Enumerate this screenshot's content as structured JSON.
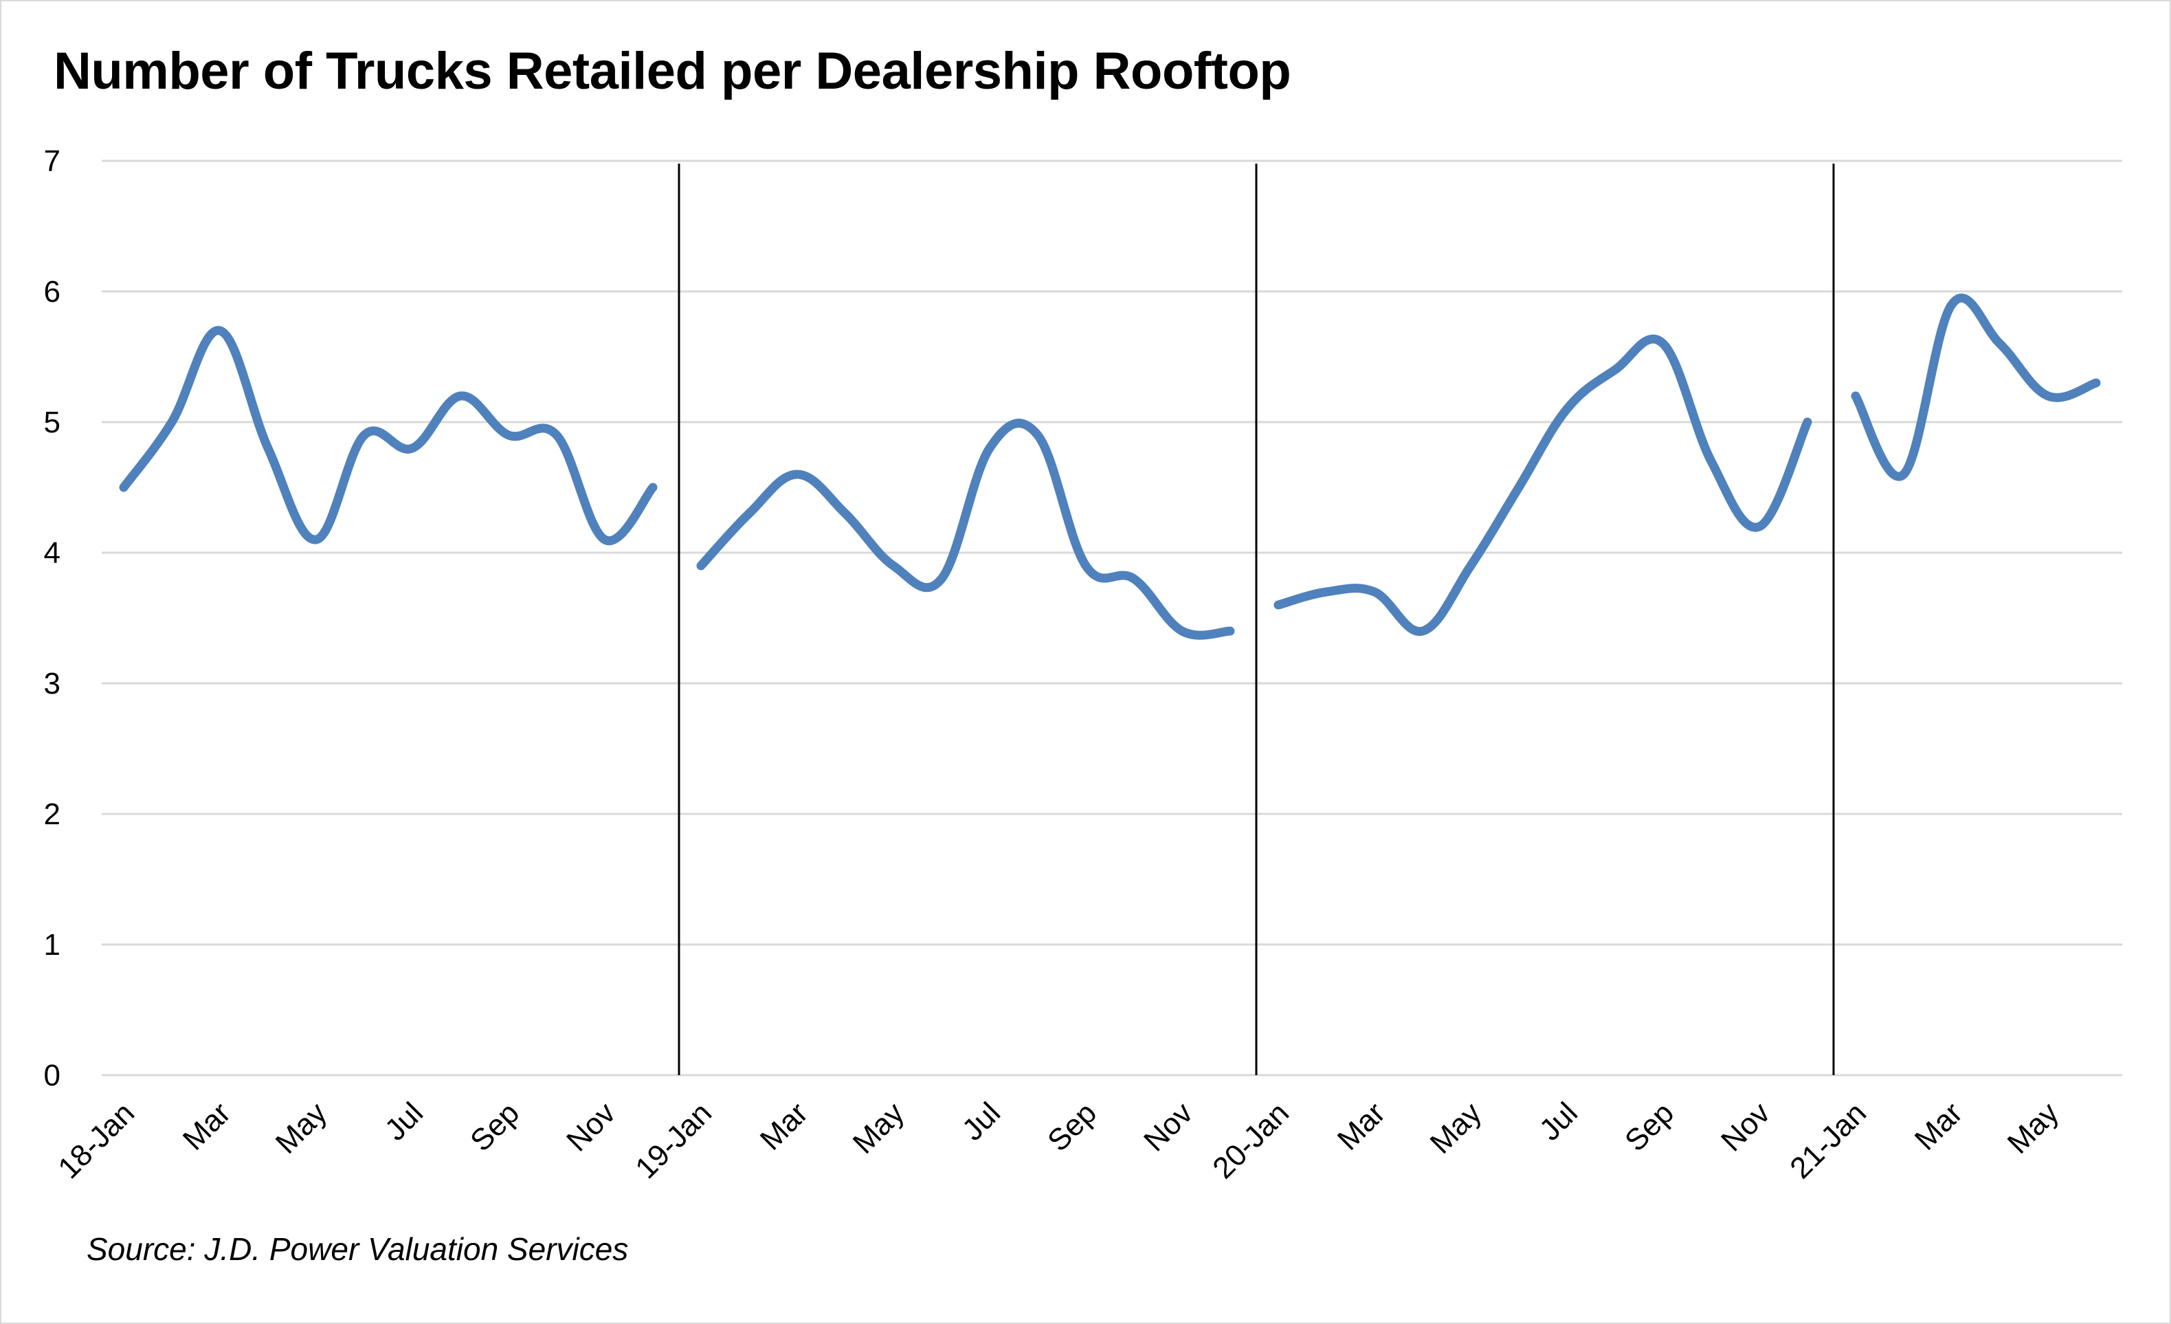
{
  "chart_data": {
    "type": "line",
    "title": "Number of Trucks Retailed per Dealership Rooftop",
    "source": "Source: J.D. Power Valuation Services",
    "ylim": [
      0,
      7
    ],
    "yticks": [
      "0",
      "1",
      "2",
      "3",
      "4",
      "5",
      "6",
      "7"
    ],
    "grid": true,
    "x_tick_labels": [
      "18-Jan",
      "Mar",
      "May",
      "Jul",
      "Sep",
      "Nov",
      "19-Jan",
      "Mar",
      "May",
      "Jul",
      "Sep",
      "Nov",
      "20-Jan",
      "Mar",
      "May",
      "Jul",
      "Sep",
      "Nov",
      "21-Jan",
      "Mar",
      "May"
    ],
    "year_separators_after_month_index": [
      12,
      24,
      36
    ],
    "series_color": "#4f81bd",
    "segments": [
      {
        "year": "2018",
        "values": [
          4.5,
          5.0,
          5.7,
          4.8,
          4.1,
          4.9,
          4.8,
          5.2,
          4.9,
          4.9,
          4.1,
          4.5
        ]
      },
      {
        "year": "2019",
        "values": [
          3.9,
          4.3,
          4.6,
          4.3,
          3.9,
          3.8,
          4.8,
          4.9,
          3.9,
          3.8,
          3.4,
          3.4
        ]
      },
      {
        "year": "2020",
        "values": [
          3.6,
          3.7,
          3.7,
          3.4,
          3.9,
          4.5,
          5.1,
          5.4,
          5.6,
          4.7,
          4.2,
          5.0
        ]
      },
      {
        "year": "2021",
        "values": [
          5.2,
          4.6,
          5.9,
          5.6,
          5.2,
          5.3
        ]
      }
    ]
  }
}
